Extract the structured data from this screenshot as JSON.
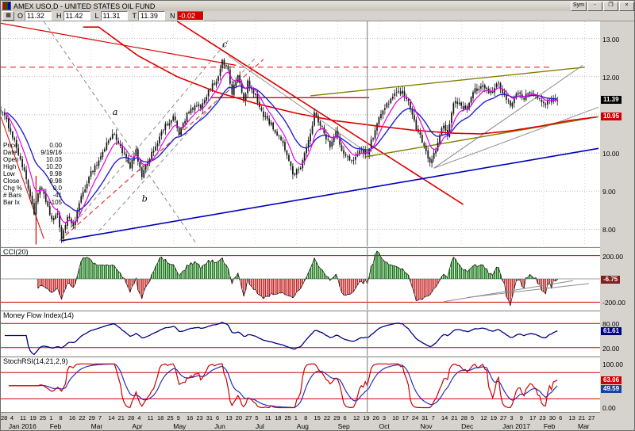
{
  "win": {
    "title": "AMEX USO,D - UNITED STATES OIL FUND",
    "buttons": {
      "sym": "Sym",
      "min": "-",
      "max": "❐",
      "close": "×"
    }
  },
  "quote_bar": {
    "fields": [
      {
        "label": "O",
        "value": "11.32",
        "neg": false
      },
      {
        "label": "H",
        "value": "11.42",
        "neg": false
      },
      {
        "label": "L",
        "value": "11.31",
        "neg": false
      },
      {
        "label": "T",
        "value": "11.39",
        "neg": false
      },
      {
        "label": "N",
        "value": "-0.02",
        "neg": true
      }
    ]
  },
  "data_window": {
    "rows": [
      [
        "Price",
        "0.00"
      ],
      [
        "Date",
        "9/19/16"
      ],
      [
        "Open",
        "10.03"
      ],
      [
        "High",
        "10.20"
      ],
      [
        "Low",
        "9.98"
      ],
      [
        "Close",
        "9.98"
      ],
      [
        "Chg %",
        "0.0"
      ],
      [
        "# Bars",
        "-41"
      ],
      [
        "Bar Ix",
        "-105"
      ]
    ]
  },
  "chart_data": {
    "type": "candlestick",
    "title": "AMEX USO,D - UNITED STATES OIL FUND",
    "crosshair_index": 187,
    "crosshair_date": "9/19/16",
    "x_axis": {
      "total_slots": 305,
      "candle_count": 285,
      "day_ticks": [
        "28",
        "4",
        "11",
        "19",
        "25",
        "1",
        "8",
        "16",
        "22",
        "29",
        "7",
        "14",
        "21",
        "28",
        "4",
        "11",
        "18",
        "25",
        "9",
        "16",
        "23",
        "31",
        "6",
        "13",
        "20",
        "27",
        "5",
        "11",
        "18",
        "25",
        "1",
        "8",
        "15",
        "22",
        "29",
        "6",
        "12",
        "19",
        "26",
        "3",
        "10",
        "17",
        "24",
        "31",
        "7",
        "14",
        "21",
        "28",
        "5",
        "12",
        "19",
        "27",
        "3",
        "9",
        "17",
        "23",
        "30",
        "6",
        "13",
        "21",
        "27"
      ],
      "months": [
        "Jan 2016",
        "Feb",
        "Mar",
        "Apr",
        "May",
        "Jun",
        "Jul",
        "Aug",
        "Sep",
        "Oct",
        "Nov",
        "Dec",
        "Jan 2017",
        "Feb",
        "Mar"
      ]
    },
    "price": {
      "range": [
        7.55,
        13.45
      ],
      "gridlines": [
        8,
        9,
        10,
        11,
        12,
        13
      ],
      "tick_labels": [
        {
          "v": 13,
          "t": "13.00"
        },
        {
          "v": 12,
          "t": "12.00"
        },
        {
          "v": 10,
          "t": "10.00"
        },
        {
          "v": 9,
          "t": "9.00"
        },
        {
          "v": 8,
          "t": "8.00"
        }
      ],
      "badges": [
        {
          "t": "11.39",
          "v": 11.39,
          "bg": "#000000"
        },
        {
          "t": "10.95",
          "v": 10.95,
          "bg": "#cc0000"
        }
      ],
      "last_close": 11.39,
      "anchors": [
        [
          0,
          11.15
        ],
        [
          5,
          10.6
        ],
        [
          9,
          10.0
        ],
        [
          13,
          9.3
        ],
        [
          17,
          8.45
        ],
        [
          20,
          9.1
        ],
        [
          23,
          8.75
        ],
        [
          26,
          8.25
        ],
        [
          29,
          8.35
        ],
        [
          31,
          7.8
        ],
        [
          34,
          8.3
        ],
        [
          37,
          8.1
        ],
        [
          41,
          8.8
        ],
        [
          45,
          9.4
        ],
        [
          50,
          9.8
        ],
        [
          55,
          10.35
        ],
        [
          58,
          10.5
        ],
        [
          62,
          10.05
        ],
        [
          66,
          9.6
        ],
        [
          69,
          10.05
        ],
        [
          72,
          9.35
        ],
        [
          76,
          9.9
        ],
        [
          80,
          10.3
        ],
        [
          84,
          10.7
        ],
        [
          88,
          10.95
        ],
        [
          91,
          10.5
        ],
        [
          95,
          11.0
        ],
        [
          99,
          11.2
        ],
        [
          103,
          11.25
        ],
        [
          107,
          11.7
        ],
        [
          110,
          11.9
        ],
        [
          113,
          12.4
        ],
        [
          116,
          12.2
        ],
        [
          118,
          11.55
        ],
        [
          121,
          12.05
        ],
        [
          124,
          11.35
        ],
        [
          126,
          11.85
        ],
        [
          130,
          11.45
        ],
        [
          134,
          11.0
        ],
        [
          138,
          10.75
        ],
        [
          142,
          10.4
        ],
        [
          146,
          10.0
        ],
        [
          149,
          9.45
        ],
        [
          153,
          9.65
        ],
        [
          157,
          10.3
        ],
        [
          160,
          11.0
        ],
        [
          164,
          10.7
        ],
        [
          168,
          10.15
        ],
        [
          171,
          10.55
        ],
        [
          175,
          9.95
        ],
        [
          179,
          9.75
        ],
        [
          183,
          10.1
        ],
        [
          187,
          9.98
        ],
        [
          190,
          10.45
        ],
        [
          193,
          10.9
        ],
        [
          197,
          11.3
        ],
        [
          201,
          11.5
        ],
        [
          205,
          11.65
        ],
        [
          209,
          11.2
        ],
        [
          213,
          10.5
        ],
        [
          216,
          10.25
        ],
        [
          219,
          9.7
        ],
        [
          222,
          10.1
        ],
        [
          226,
          10.75
        ],
        [
          228,
          10.45
        ],
        [
          231,
          11.35
        ],
        [
          234,
          11.25
        ],
        [
          238,
          11.15
        ],
        [
          242,
          11.65
        ],
        [
          246,
          11.75
        ],
        [
          250,
          11.55
        ],
        [
          254,
          11.85
        ],
        [
          257,
          11.5
        ],
        [
          260,
          11.25
        ],
        [
          263,
          11.55
        ],
        [
          267,
          11.45
        ],
        [
          271,
          11.6
        ],
        [
          274,
          11.45
        ],
        [
          277,
          11.3
        ],
        [
          280,
          11.35
        ],
        [
          284,
          11.39
        ]
      ],
      "ma_fast_period": 8,
      "ma_slow_period": 21,
      "ma_fast_color": "#e600e6",
      "ma_slow_color": "#2222cc",
      "ma_long_color": "#dd0000",
      "ma_long_anchors": [
        [
          50,
          13.3
        ],
        [
          70,
          12.55
        ],
        [
          90,
          12.0
        ],
        [
          110,
          11.6
        ],
        [
          130,
          11.3
        ],
        [
          150,
          11.05
        ],
        [
          170,
          10.85
        ],
        [
          190,
          10.72
        ],
        [
          210,
          10.6
        ],
        [
          230,
          10.52
        ],
        [
          245,
          10.5
        ],
        [
          260,
          10.58
        ],
        [
          275,
          10.7
        ],
        [
          290,
          10.85
        ],
        [
          305,
          10.95
        ]
      ],
      "lines": [
        {
          "name": "downtrend-major",
          "color": "#dd0000",
          "width": 1.6,
          "dash": "",
          "points": [
            [
              90,
              13.45
            ],
            [
              236,
              8.65
            ]
          ]
        },
        {
          "name": "downtrend-minor",
          "color": "#dd0000",
          "width": 1.2,
          "dash": "",
          "points": [
            [
              0,
              13.4
            ],
            [
              120,
              12.3
            ]
          ]
        },
        {
          "name": "jan-decline",
          "color": "#dd0000",
          "width": 1.0,
          "dash": "",
          "points": [
            [
              0,
              10.95
            ],
            [
              22,
              7.75
            ]
          ]
        },
        {
          "name": "red-vertical-marker",
          "color": "#dd0000",
          "width": 1.2,
          "dash": "",
          "points": [
            [
              18,
              9.4
            ],
            [
              18,
              7.6
            ]
          ]
        },
        {
          "name": "dashed-red-uptrend",
          "color": "#ee3333",
          "width": 1.2,
          "dash": "6,4",
          "points": [
            [
              30,
              7.7
            ],
            [
              134,
              12.45
            ]
          ]
        },
        {
          "name": "dashed-gray-up-1",
          "color": "#8a8a8a",
          "width": 1.0,
          "dash": "5,4",
          "points": [
            [
              31,
              7.75
            ],
            [
              116,
              12.95
            ]
          ]
        },
        {
          "name": "dashed-gray-up-2",
          "color": "#8a8a8a",
          "width": 1.0,
          "dash": "5,4",
          "points": [
            [
              50,
              7.95
            ],
            [
              130,
              12.5
            ]
          ]
        },
        {
          "name": "dashed-gray-down",
          "color": "#8a8a8a",
          "width": 1.0,
          "dash": "5,4",
          "points": [
            [
              22,
              13.45
            ],
            [
              100,
              7.6
            ]
          ]
        },
        {
          "name": "neckline-gray",
          "color": "#999999",
          "width": 1.0,
          "dash": "",
          "points": [
            [
              116,
              12.55
            ],
            [
              190,
              9.9
            ]
          ]
        },
        {
          "name": "long-support-blue",
          "color": "#0000bb",
          "width": 1.6,
          "dash": "",
          "points": [
            [
              31,
              7.7
            ],
            [
              305,
              10.12
            ]
          ]
        },
        {
          "name": "olive-channel-upper",
          "color": "#808000",
          "width": 1.4,
          "dash": "",
          "points": [
            [
              158,
              11.5
            ],
            [
              298,
              12.25
            ]
          ]
        },
        {
          "name": "olive-channel-lower",
          "color": "#808000",
          "width": 1.4,
          "dash": "",
          "points": [
            [
              186,
              9.9
            ],
            [
              305,
              10.95
            ]
          ]
        },
        {
          "name": "gray-fan-steep",
          "color": "#8a8a8a",
          "width": 1.0,
          "dash": "",
          "points": [
            [
              221,
              9.6
            ],
            [
              297,
              12.3
            ]
          ]
        },
        {
          "name": "gray-fan-shallow",
          "color": "#8a8a8a",
          "width": 1.0,
          "dash": "",
          "points": [
            [
              221,
              9.6
            ],
            [
              305,
              11.2
            ]
          ]
        },
        {
          "name": "red-resistance",
          "color": "#dd0000",
          "width": 1.3,
          "dash": "",
          "points": [
            [
              107,
              11.45
            ],
            [
              188,
              11.45
            ]
          ]
        },
        {
          "name": "dashed-red-horizontal",
          "color": "#ee2222",
          "width": 1.2,
          "dash": "7,5",
          "points": [
            [
              0,
              12.25
            ],
            [
              281,
              12.25
            ]
          ]
        }
      ],
      "wave_labels": [
        {
          "t": "a",
          "i": 57,
          "p": 11.0
        },
        {
          "t": "b",
          "i": 72,
          "p": 8.72
        },
        {
          "t": "c",
          "i": 113,
          "p": 12.78
        }
      ]
    },
    "cci": {
      "title": "CCI(20)",
      "period": 20,
      "range": [
        -265,
        265
      ],
      "ref_lines": [
        200,
        -200
      ],
      "ticks": [
        {
          "v": 200,
          "t": "200.00"
        },
        {
          "v": -200,
          "t": "-200.00"
        }
      ],
      "badge": {
        "t": "-6.75",
        "v": -6.75,
        "bg": "#7d1f1f"
      },
      "pos_color": "#1a7a1a",
      "neg_color": "#c62828",
      "trendlines": [
        [
          [
            226,
            -195
          ],
          [
            292,
            -15
          ]
        ],
        [
          [
            238,
            -160
          ],
          [
            300,
            -40
          ]
        ]
      ]
    },
    "mfi": {
      "title": "Money Flow Index(14)",
      "period": 14,
      "range": [
        0,
        110
      ],
      "ref_lines": [
        80,
        20
      ],
      "ticks": [
        {
          "v": 80,
          "t": "80.00"
        },
        {
          "v": 20,
          "t": "20.00"
        }
      ],
      "badge": {
        "t": "61.61",
        "v": 61.61,
        "bg": "#000080"
      },
      "line_color": "#000080"
    },
    "stochrsi": {
      "title": "StochRSI(14,21,2,9)",
      "range": [
        -10,
        115
      ],
      "ref_lines": [
        80,
        20
      ],
      "ticks": [
        {
          "v": 100,
          "t": "100.00"
        },
        {
          "v": 0,
          "t": "0.00"
        }
      ],
      "badges": [
        {
          "t": "63.06",
          "v": 63.06,
          "bg": "#cc0000"
        },
        {
          "t": "49.59",
          "v": 49.59,
          "bg": "#1f3f9e"
        }
      ],
      "k_color": "#cc0000",
      "d_color": "#2233bb"
    }
  }
}
